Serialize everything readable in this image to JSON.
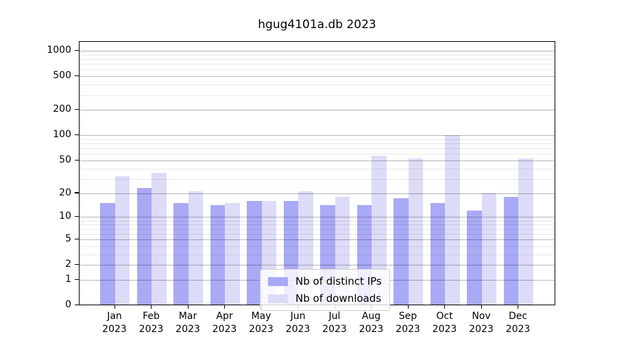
{
  "chart_data": {
    "type": "bar",
    "title": "hgug4101a.db 2023",
    "categories": [
      "Jan",
      "Feb",
      "Mar",
      "Apr",
      "May",
      "Jun",
      "Jul",
      "Aug",
      "Sep",
      "Oct",
      "Nov",
      "Dec"
    ],
    "category_year": "2023",
    "series": [
      {
        "name": "Nb of distinct IPs",
        "color": "#a9a9f6",
        "values": [
          15,
          23,
          15,
          14,
          16,
          16,
          14,
          14,
          17,
          15,
          12,
          18
        ]
      },
      {
        "name": "Nb of downloads",
        "color": "#dcdcf9",
        "values": [
          32,
          35,
          21,
          15,
          16,
          21,
          18,
          57,
          52,
          100,
          20,
          52
        ]
      }
    ],
    "yscale": "log1p",
    "ylim": [
      0,
      1275
    ],
    "y_major_ticks": [
      0,
      1,
      2,
      5,
      10,
      20,
      50,
      100,
      200,
      500,
      1000
    ],
    "y_minor_gridlines": [
      3,
      4,
      6,
      7,
      8,
      9,
      30,
      40,
      60,
      70,
      80,
      90,
      300,
      400,
      600,
      700,
      800,
      900
    ],
    "grid": "on",
    "legend_position": "bottom-center",
    "colors": {
      "grid_major": "#b5b5b5",
      "grid_minor": "#e8e8e8",
      "axis": "#000000",
      "legend_border": "#cccccc",
      "background": "#ffffff"
    }
  }
}
